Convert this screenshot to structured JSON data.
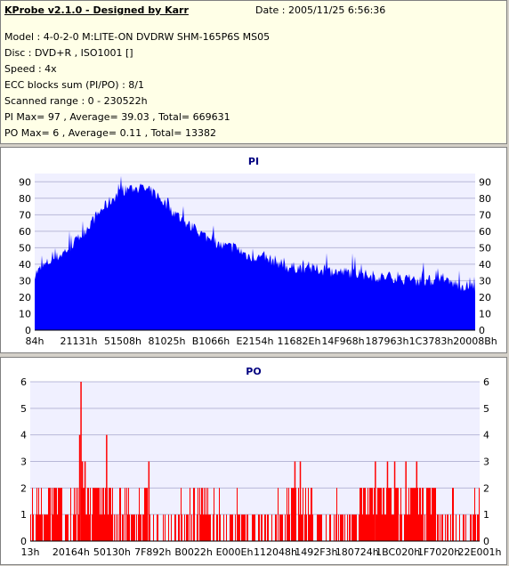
{
  "info": {
    "title": "KProbe v2.1.0 - Designed by Karr",
    "date": "Date : 2005/11/25 6:56:36",
    "lines": [
      "Model : 4-0-2-0 M:LITE-ON DVDRW SHM-165P6S MS05",
      "Disc : DVD+R , ISO1001 []",
      "Speed : 4x",
      "ECC blocks sum (PI/PO) : 8/1",
      "Scanned range : 0 - 230522h",
      "PI Max= 97 , Average= 39.03 , Total= 669631",
      "PO Max= 6 , Average= 0.11 , Total= 13382"
    ]
  },
  "colors": {
    "pi": "#0000ff",
    "po": "#ff0000",
    "title": "#000080",
    "plot_bg": "#f0f0ff",
    "grid": "#b8b8d8"
  },
  "chart_data": [
    {
      "type": "area",
      "title": "PI",
      "ylim": [
        0,
        95
      ],
      "yticks": [
        0,
        10,
        20,
        30,
        40,
        50,
        60,
        70,
        80,
        90
      ],
      "xticks": [
        "84h",
        "21131h",
        "51508h",
        "81025h",
        "B1066h",
        "E2154h",
        "11682Eh",
        "14F968h",
        "187963h",
        "1C3783h",
        "20008Bh"
      ],
      "grid": true,
      "profile": [
        [
          0,
          33
        ],
        [
          3,
          40
        ],
        [
          6,
          45
        ],
        [
          9,
          52
        ],
        [
          12,
          62
        ],
        [
          15,
          72
        ],
        [
          18,
          80
        ],
        [
          21,
          85
        ],
        [
          24,
          85
        ],
        [
          27,
          82
        ],
        [
          30,
          74
        ],
        [
          33,
          66
        ],
        [
          36,
          60
        ],
        [
          39,
          55
        ],
        [
          42,
          50
        ],
        [
          45,
          49
        ],
        [
          48,
          44
        ],
        [
          51,
          43
        ],
        [
          54,
          41
        ],
        [
          57,
          37
        ],
        [
          60,
          37
        ],
        [
          63,
          36
        ],
        [
          66,
          35
        ],
        [
          69,
          34
        ],
        [
          72,
          34
        ],
        [
          75,
          32
        ],
        [
          78,
          31
        ],
        [
          81,
          31
        ],
        [
          84,
          29
        ],
        [
          87,
          29
        ],
        [
          90,
          29
        ],
        [
          93,
          28
        ],
        [
          96,
          26
        ],
        [
          99,
          25
        ]
      ]
    },
    {
      "type": "bar",
      "title": "PO",
      "ylim": [
        0,
        6
      ],
      "yticks": [
        0,
        1,
        2,
        3,
        4,
        5,
        6
      ],
      "xticks": [
        "13h",
        "20164h",
        "50130h",
        "7F892h",
        "B0022h",
        "E000Eh",
        "112048h",
        "1492F3h",
        "180724h",
        "1BC020h",
        "1F7020h",
        "22E001h"
      ],
      "grid": true,
      "spikes": [
        [
          11.3,
          6
        ],
        [
          11.0,
          4
        ],
        [
          11.6,
          3
        ],
        [
          12.2,
          3
        ],
        [
          17.0,
          4
        ],
        [
          26.4,
          3
        ],
        [
          58.9,
          3
        ],
        [
          60.1,
          3
        ],
        [
          76.8,
          3
        ],
        [
          79.5,
          3
        ],
        [
          81.1,
          3
        ],
        [
          83.6,
          3
        ],
        [
          86.0,
          3
        ]
      ],
      "twos": [
        [
          1,
          7
        ],
        [
          9,
          18
        ],
        [
          24,
          26
        ],
        [
          37,
          40
        ],
        [
          58,
          63
        ],
        [
          73,
          90
        ]
      ]
    }
  ]
}
